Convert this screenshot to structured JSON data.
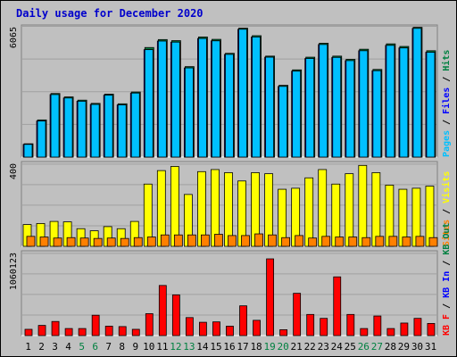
{
  "title": "Daily usage for December 2020",
  "chart_data": [
    {
      "type": "bar",
      "name": "hits-files-pages",
      "ymax_label": "6065",
      "ylim": [
        0,
        6065
      ],
      "legend": [
        {
          "text": "Pages",
          "color": "#00c0ff"
        },
        {
          "text": " / ",
          "color": "#000000"
        },
        {
          "text": "Files",
          "color": "#0000ff"
        },
        {
          "text": " / ",
          "color": "#000000"
        },
        {
          "text": "Hits",
          "color": "#008040"
        }
      ],
      "categories": [
        "1",
        "2",
        "3",
        "4",
        "5",
        "6",
        "7",
        "8",
        "9",
        "10",
        "11",
        "12",
        "13",
        "14",
        "15",
        "16",
        "17",
        "18",
        "19",
        "20",
        "21",
        "22",
        "23",
        "24",
        "25",
        "26",
        "27",
        "28",
        "29",
        "30",
        "31"
      ],
      "series": [
        {
          "name": "Hits",
          "color": "#008040",
          "values": [
            620,
            1730,
            2960,
            2800,
            2650,
            2500,
            2930,
            2480,
            3030,
            5100,
            5470,
            5420,
            4210,
            5590,
            5480,
            4830,
            6000,
            5650,
            4700,
            3340,
            4060,
            4650,
            5300,
            4700,
            4550,
            5020,
            4080,
            5270,
            5150,
            6040,
            4950
          ]
        },
        {
          "name": "Files",
          "color": "#0000ff",
          "values": [
            590,
            1680,
            2910,
            2750,
            2600,
            2450,
            2880,
            2430,
            2980,
            5000,
            5400,
            5350,
            4150,
            5520,
            5410,
            4780,
            5950,
            5590,
            4650,
            3290,
            4000,
            4590,
            5240,
            4640,
            4490,
            4950,
            4020,
            5200,
            5080,
            5990,
            4880
          ]
        },
        {
          "name": "Pages",
          "color": "#00c0ff",
          "values": [
            590,
            1680,
            2910,
            2750,
            2600,
            2450,
            2880,
            2430,
            2980,
            5000,
            5400,
            5350,
            4150,
            5520,
            5410,
            4780,
            5950,
            5590,
            4650,
            3290,
            4000,
            4590,
            5240,
            4640,
            4490,
            4950,
            4020,
            5200,
            5080,
            5990,
            4880
          ]
        }
      ]
    },
    {
      "type": "bar",
      "name": "visits-sites",
      "ymax_label": "400",
      "ylim": [
        0,
        400
      ],
      "legend": [
        {
          "text": "Sites",
          "color": "#ff8000"
        },
        {
          "text": " / ",
          "color": "#000000"
        },
        {
          "text": "Visits",
          "color": "#ffff00"
        }
      ],
      "categories": [
        "1",
        "2",
        "3",
        "4",
        "5",
        "6",
        "7",
        "8",
        "9",
        "10",
        "11",
        "12",
        "13",
        "14",
        "15",
        "16",
        "17",
        "18",
        "19",
        "20",
        "21",
        "22",
        "23",
        "24",
        "25",
        "26",
        "27",
        "28",
        "29",
        "30",
        "31"
      ],
      "series": [
        {
          "name": "Visits",
          "color": "#ffff00",
          "values": [
            105,
            110,
            120,
            118,
            85,
            75,
            95,
            85,
            120,
            300,
            365,
            385,
            250,
            360,
            370,
            355,
            315,
            355,
            350,
            275,
            280,
            330,
            370,
            300,
            350,
            390,
            355,
            295,
            275,
            280,
            290
          ]
        },
        {
          "name": "Sites",
          "color": "#ff8000",
          "values": [
            48,
            45,
            40,
            42,
            40,
            38,
            40,
            38,
            42,
            45,
            55,
            55,
            55,
            55,
            58,
            52,
            52,
            60,
            55,
            42,
            52,
            40,
            48,
            45,
            45,
            42,
            48,
            48,
            45,
            48,
            42
          ]
        }
      ]
    },
    {
      "type": "bar",
      "name": "kbytes",
      "ymax_label": "1060123",
      "ylim": [
        0,
        1060123
      ],
      "legend": [
        {
          "text": "KB F",
          "color": "#ff0000"
        },
        {
          "text": " / ",
          "color": "#000000"
        },
        {
          "text": "KB In",
          "color": "#0000ff"
        },
        {
          "text": " / ",
          "color": "#000000"
        },
        {
          "text": "KB Out",
          "color": "#008040"
        }
      ],
      "categories": [
        "1",
        "2",
        "3",
        "4",
        "5",
        "6",
        "7",
        "8",
        "9",
        "10",
        "11",
        "12",
        "13",
        "14",
        "15",
        "16",
        "17",
        "18",
        "19",
        "20",
        "21",
        "22",
        "23",
        "24",
        "25",
        "26",
        "27",
        "28",
        "29",
        "30",
        "31"
      ],
      "series": [
        {
          "name": "KB F",
          "color": "#ff0000",
          "values": [
            80000,
            130000,
            180000,
            90000,
            90000,
            260000,
            120000,
            115000,
            80000,
            280000,
            640000,
            520000,
            230000,
            170000,
            175000,
            120000,
            380000,
            195000,
            980000,
            75000,
            540000,
            270000,
            220000,
            750000,
            270000,
            90000,
            250000,
            90000,
            160000,
            220000,
            155000
          ]
        }
      ],
      "weekend_days": [
        "5",
        "6",
        "12",
        "13",
        "19",
        "20",
        "26",
        "27"
      ]
    }
  ],
  "colors": {
    "frame_bg": "#c0c0c0",
    "weekday_label": "#000000",
    "weekend_label": "#008040"
  }
}
